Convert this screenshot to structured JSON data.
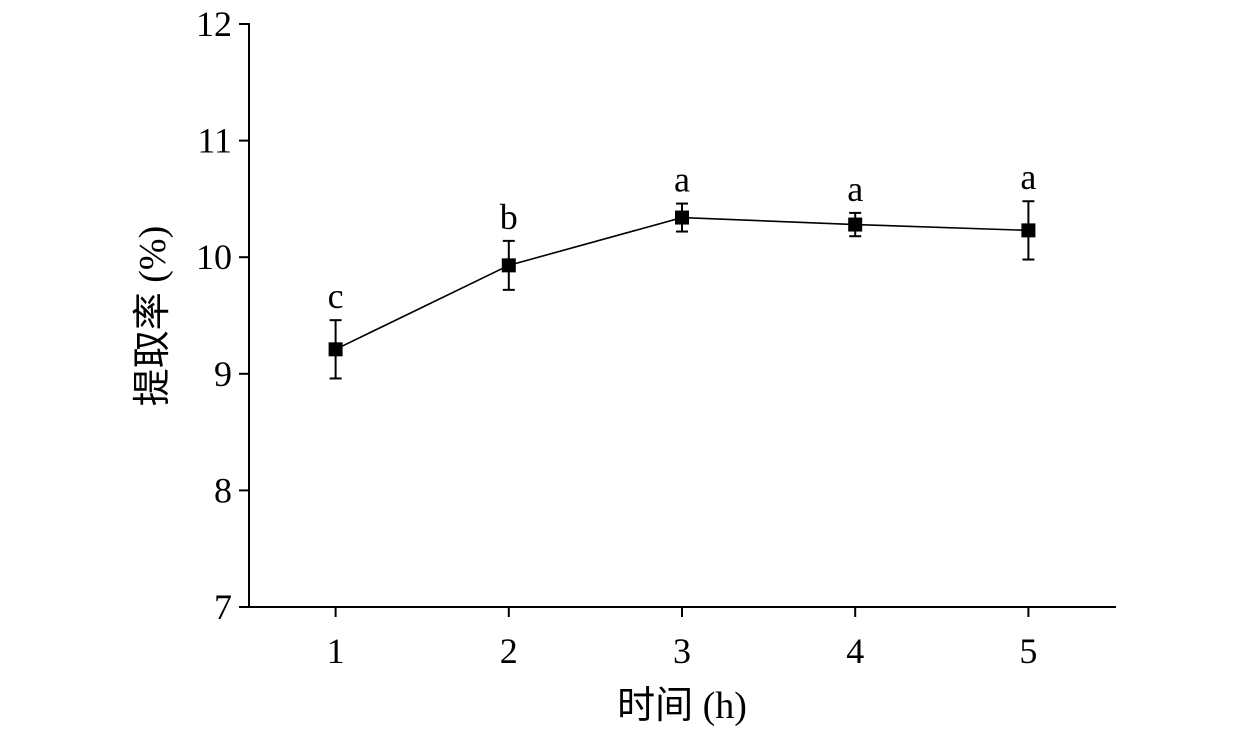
{
  "chart_data": {
    "type": "line",
    "title": "",
    "xlabel": "时间 (h)",
    "ylabel": "提取率 (%)",
    "x": [
      1,
      2,
      3,
      4,
      5
    ],
    "xticks": [
      1,
      2,
      3,
      4,
      5
    ],
    "yticks": [
      7,
      8,
      9,
      10,
      11,
      12
    ],
    "xlim": [
      0.5,
      5.5
    ],
    "ylim": [
      7,
      12
    ],
    "grid": false,
    "legend": "none",
    "marker": "square",
    "colors": {
      "line": "#000000",
      "marker": "#000000",
      "axis": "#000000"
    },
    "series": [
      {
        "values": [
          9.21,
          9.93,
          10.34,
          10.28,
          10.23
        ],
        "error": [
          0.25,
          0.21,
          0.12,
          0.1,
          0.25
        ],
        "significance": [
          "c",
          "b",
          "a",
          "a",
          "a"
        ]
      }
    ]
  }
}
